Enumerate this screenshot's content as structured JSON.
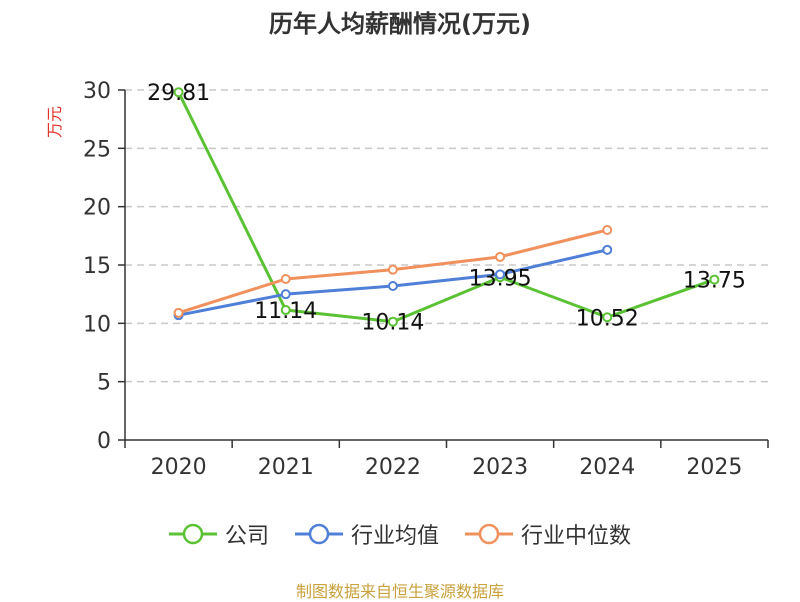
{
  "chart_data": {
    "type": "line",
    "title": "历年人均薪酬情况(万元)",
    "ylabel": "万元",
    "categories": [
      "2020",
      "2021",
      "2022",
      "2023",
      "2024",
      "2025"
    ],
    "ylim": [
      0,
      30
    ],
    "yticks": [
      0,
      5,
      10,
      15,
      20,
      25,
      30
    ],
    "grid": true,
    "legend": "bottom",
    "series": [
      {
        "name": "公司",
        "color": "#5bc234",
        "values": [
          29.81,
          11.14,
          10.14,
          13.95,
          10.52,
          13.75
        ],
        "labels": [
          "29.81",
          "11.14",
          "10.14",
          "13.95",
          "10.52",
          "13.75"
        ]
      },
      {
        "name": "行业均值",
        "color": "#4f7fd6",
        "values": [
          10.7,
          12.5,
          13.2,
          14.2,
          16.3,
          null
        ]
      },
      {
        "name": "行业中位数",
        "color": "#f0915d",
        "values": [
          10.9,
          13.8,
          14.6,
          15.7,
          18.0,
          null
        ]
      }
    ]
  },
  "footer": {
    "source": "制图数据来自恒生聚源数据库"
  }
}
